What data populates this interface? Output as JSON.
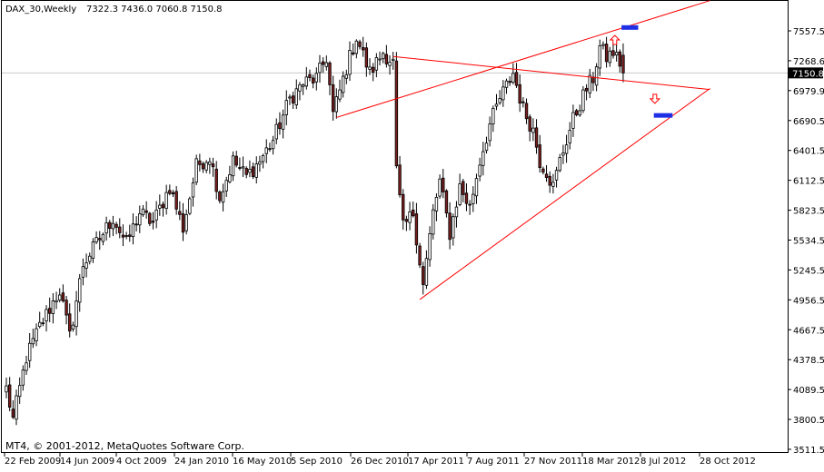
{
  "chart_data": {
    "type": "candlestick",
    "header": {
      "symbol": "DAX_30,Weekly",
      "ohlc": "7322.3 7436.0 7060.8 7150.8"
    },
    "footer": "MT4, © 2001-2012, MetaQuotes Software Corp.",
    "price_ticks": [
      "7557.5",
      "7268.6",
      "6979.9",
      "6690.5",
      "6401.5",
      "6112.5",
      "5823.5",
      "5534.5",
      "5245.5",
      "4956.5",
      "4667.5",
      "4378.5",
      "4089.5",
      "3800.5",
      "3511.5"
    ],
    "price_tick_values": [
      7557.5,
      7268.6,
      6979.9,
      6690.5,
      6401.5,
      6112.5,
      5823.5,
      5534.5,
      5245.5,
      4956.5,
      4667.5,
      4378.5,
      4089.5,
      3800.5,
      3511.5
    ],
    "ylim": [
      3511.5,
      7557.5
    ],
    "current_price": {
      "label": "7150.8",
      "value": 7150.8
    },
    "date_ticks": [
      "22 Feb 2009",
      "14 Jun 2009",
      "4 Oct 2009",
      "24 Jan 2010",
      "16 May 2010",
      "5 Sep 2010",
      "26 Dec 2010",
      "17 Apr 2011",
      "7 Aug 2011",
      "27 Nov 2011",
      "18 Mar 2012",
      "8 Jul 2012",
      "28 Oct 2012"
    ],
    "grid": false,
    "colors": {
      "bull_body": "#ffffff",
      "bear_body": "#7b1e1e",
      "wick": "#000000",
      "trendline": "#ff0000",
      "target_marker": "#1f2fe6",
      "arrow": "#ff0000",
      "price_label_bg": "#000000",
      "price_label_text": "#ffffff"
    },
    "anchors": [
      {
        "w": 0,
        "c": 4100
      },
      {
        "w": 2,
        "c": 3800
      },
      {
        "w": 6,
        "c": 4400
      },
      {
        "w": 10,
        "c": 4700
      },
      {
        "w": 16,
        "c": 5050
      },
      {
        "w": 19,
        "c": 4600
      },
      {
        "w": 23,
        "c": 5300
      },
      {
        "w": 27,
        "c": 5500
      },
      {
        "w": 32,
        "c": 5750
      },
      {
        "w": 36,
        "c": 5500
      },
      {
        "w": 40,
        "c": 5800
      },
      {
        "w": 44,
        "c": 5700
      },
      {
        "w": 49,
        "c": 6050
      },
      {
        "w": 53,
        "c": 5650
      },
      {
        "w": 57,
        "c": 6250
      },
      {
        "w": 61,
        "c": 6350
      },
      {
        "w": 64,
        "c": 5950
      },
      {
        "w": 68,
        "c": 6300
      },
      {
        "w": 72,
        "c": 6150
      },
      {
        "w": 76,
        "c": 6300
      },
      {
        "w": 80,
        "c": 6500
      },
      {
        "w": 85,
        "c": 6900
      },
      {
        "w": 89,
        "c": 7050
      },
      {
        "w": 93,
        "c": 7100
      },
      {
        "w": 96,
        "c": 7300
      },
      {
        "w": 98,
        "c": 6750
      },
      {
        "w": 102,
        "c": 7200
      },
      {
        "w": 105,
        "c": 7500
      },
      {
        "w": 109,
        "c": 7150
      },
      {
        "w": 113,
        "c": 7350
      },
      {
        "w": 116,
        "c": 7250
      },
      {
        "w": 117,
        "c": 6200
      },
      {
        "w": 119,
        "c": 5650
      },
      {
        "w": 122,
        "c": 5800
      },
      {
        "w": 125,
        "c": 5100
      },
      {
        "w": 128,
        "c": 5800
      },
      {
        "w": 130,
        "c": 6100
      },
      {
        "w": 133,
        "c": 5600
      },
      {
        "w": 136,
        "c": 6050
      },
      {
        "w": 139,
        "c": 5850
      },
      {
        "w": 142,
        "c": 6300
      },
      {
        "w": 145,
        "c": 6650
      },
      {
        "w": 148,
        "c": 6900
      },
      {
        "w": 152,
        "c": 7150
      },
      {
        "w": 155,
        "c": 6800
      },
      {
        "w": 158,
        "c": 6600
      },
      {
        "w": 160,
        "c": 6300
      },
      {
        "w": 162,
        "c": 6200
      },
      {
        "w": 164,
        "c": 6050
      },
      {
        "w": 166,
        "c": 6300
      },
      {
        "w": 168,
        "c": 6500
      },
      {
        "w": 170,
        "c": 6700
      },
      {
        "w": 172,
        "c": 6850
      },
      {
        "w": 174,
        "c": 7000
      },
      {
        "w": 176,
        "c": 7100
      },
      {
        "w": 178,
        "c": 7400
      },
      {
        "w": 180,
        "c": 7300
      },
      {
        "w": 182,
        "c": 7350
      },
      {
        "w": 184,
        "c": 7250
      },
      {
        "w": 185,
        "c": 7150.8
      }
    ],
    "trendlines": [
      {
        "from": {
          "w": 99,
          "p": 6720
        },
        "to": {
          "w": 211,
          "p": 7850
        }
      },
      {
        "from": {
          "w": 116,
          "p": 7310
        },
        "to": {
          "w": 211,
          "p": 6990
        }
      },
      {
        "from": {
          "w": 124,
          "p": 4960
        },
        "to": {
          "w": 211,
          "p": 7000
        }
      }
    ],
    "markers": [
      {
        "kind": "target",
        "w": 187,
        "p": 7590,
        "half_width_weeks": 2.5
      },
      {
        "kind": "target",
        "w": 197,
        "p": 6740,
        "half_width_weeks": 2.8
      }
    ],
    "arrows": [
      {
        "direction": "up",
        "w": 182.5,
        "p": 7470
      },
      {
        "direction": "down",
        "w": 194.5,
        "p": 6900
      }
    ]
  }
}
